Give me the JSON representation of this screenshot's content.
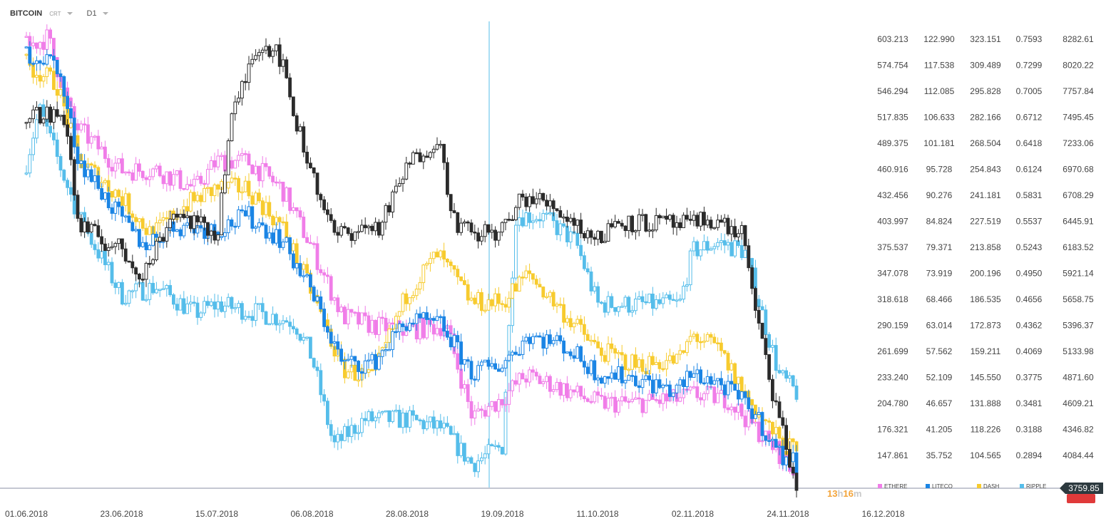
{
  "header": {
    "symbol": "BITCOIN",
    "chart_type": "CRT",
    "timeframe": "D1"
  },
  "timer": {
    "hours": "13",
    "h": "h",
    "minutes": "16",
    "m": "m"
  },
  "current_price_label": "3759.85",
  "colors": {
    "bitcoin": "#2b2b2b",
    "ethere": "#f07de8",
    "liteco": "#1a84e4",
    "dash": "#f7cb2e",
    "ripple": "#55bdea",
    "alert": "#e03a3a",
    "timer": "#f3a43a"
  },
  "chart_data": {
    "type": "candlestick",
    "x_labels": [
      "01.06.2018",
      "23.06.2018",
      "15.07.2018",
      "06.08.2018",
      "28.08.2018",
      "19.09.2018",
      "11.10.2018",
      "02.11.2018",
      "24.11.2018",
      "16.12.2018"
    ],
    "x_range": [
      "01.06.2018",
      "26.11.2018"
    ],
    "y_columns": [
      {
        "series": "ETHERE",
        "ticks": [
          "603.213",
          "574.754",
          "546.294",
          "517.835",
          "489.375",
          "460.916",
          "432.456",
          "403.997",
          "375.537",
          "347.078",
          "318.618",
          "290.159",
          "261.699",
          "233.240",
          "204.780",
          "176.321",
          "147.861"
        ]
      },
      {
        "series": "LITECO",
        "ticks": [
          "122.990",
          "117.538",
          "112.085",
          "106.633",
          "101.181",
          "95.728",
          "90.276",
          "84.824",
          "79.371",
          "73.919",
          "68.466",
          "63.014",
          "57.562",
          "52.109",
          "46.657",
          "41.205",
          "35.752"
        ]
      },
      {
        "series": "DASH",
        "ticks": [
          "323.151",
          "309.489",
          "295.828",
          "282.166",
          "268.504",
          "254.843",
          "241.181",
          "227.519",
          "213.858",
          "200.196",
          "186.535",
          "172.873",
          "159.211",
          "145.550",
          "131.888",
          "118.226",
          "104.565"
        ]
      },
      {
        "series": "RIPPLE",
        "ticks": [
          "0.7593",
          "0.7299",
          "0.7005",
          "0.6712",
          "0.6418",
          "0.6124",
          "0.5831",
          "0.5537",
          "0.5243",
          "0.4950",
          "0.4656",
          "0.4362",
          "0.4069",
          "0.3775",
          "0.3481",
          "0.3188",
          "0.2894"
        ]
      },
      {
        "series": "BITCOIN",
        "ticks": [
          "8282.61",
          "8020.22",
          "7757.84",
          "7495.45",
          "7233.06",
          "6970.68",
          "6708.29",
          "6445.91",
          "6183.52",
          "5921.14",
          "5658.75",
          "5396.37",
          "5133.98",
          "4871.60",
          "4609.21",
          "4346.82",
          "4084.44"
        ]
      }
    ],
    "series": [
      {
        "name": "BITCOIN",
        "label": "",
        "points": [
          {
            "d": "01.06.2018",
            "v": 7530
          },
          {
            "d": "10.06.2018",
            "v": 7500
          },
          {
            "d": "13.06.2018",
            "v": 6400
          },
          {
            "d": "23.06.2018",
            "v": 6150
          },
          {
            "d": "28.06.2018",
            "v": 5900
          },
          {
            "d": "05.07.2018",
            "v": 6550
          },
          {
            "d": "15.07.2018",
            "v": 6300
          },
          {
            "d": "18.07.2018",
            "v": 7400
          },
          {
            "d": "24.07.2018",
            "v": 8220
          },
          {
            "d": "29.07.2018",
            "v": 8200
          },
          {
            "d": "03.08.2018",
            "v": 7350
          },
          {
            "d": "06.08.2018",
            "v": 6950
          },
          {
            "d": "11.08.2018",
            "v": 6300
          },
          {
            "d": "15.08.2018",
            "v": 6350
          },
          {
            "d": "22.08.2018",
            "v": 6400
          },
          {
            "d": "28.08.2018",
            "v": 7000
          },
          {
            "d": "04.09.2018",
            "v": 7300
          },
          {
            "d": "08.09.2018",
            "v": 6450
          },
          {
            "d": "12.09.2018",
            "v": 6300
          },
          {
            "d": "19.09.2018",
            "v": 6350
          },
          {
            "d": "24.09.2018",
            "v": 6700
          },
          {
            "d": "01.10.2018",
            "v": 6600
          },
          {
            "d": "11.10.2018",
            "v": 6250
          },
          {
            "d": "15.10.2018",
            "v": 6450
          },
          {
            "d": "25.10.2018",
            "v": 6420
          },
          {
            "d": "02.11.2018",
            "v": 6400
          },
          {
            "d": "06.11.2018",
            "v": 6480
          },
          {
            "d": "14.11.2018",
            "v": 6300
          },
          {
            "d": "16.11.2018",
            "v": 5600
          },
          {
            "d": "20.11.2018",
            "v": 4800
          },
          {
            "d": "24.11.2018",
            "v": 4100
          },
          {
            "d": "26.11.2018",
            "v": 3760
          }
        ]
      },
      {
        "name": "ETHERE",
        "label": "ETHERE",
        "points": [
          {
            "d": "01.06.2018",
            "v": 595
          },
          {
            "d": "06.06.2018",
            "v": 605
          },
          {
            "d": "12.06.2018",
            "v": 510
          },
          {
            "d": "23.06.2018",
            "v": 460
          },
          {
            "d": "01.07.2018",
            "v": 460
          },
          {
            "d": "10.07.2018",
            "v": 440
          },
          {
            "d": "15.07.2018",
            "v": 470
          },
          {
            "d": "22.07.2018",
            "v": 470
          },
          {
            "d": "30.07.2018",
            "v": 440
          },
          {
            "d": "06.08.2018",
            "v": 375
          },
          {
            "d": "13.08.2018",
            "v": 300
          },
          {
            "d": "20.08.2018",
            "v": 290
          },
          {
            "d": "28.08.2018",
            "v": 285
          },
          {
            "d": "06.09.2018",
            "v": 290
          },
          {
            "d": "12.09.2018",
            "v": 190
          },
          {
            "d": "19.09.2018",
            "v": 210
          },
          {
            "d": "24.09.2018",
            "v": 235
          },
          {
            "d": "01.10.2018",
            "v": 225
          },
          {
            "d": "11.10.2018",
            "v": 205
          },
          {
            "d": "20.10.2018",
            "v": 205
          },
          {
            "d": "30.10.2018",
            "v": 210
          },
          {
            "d": "02.11.2018",
            "v": 215
          },
          {
            "d": "10.11.2018",
            "v": 210
          },
          {
            "d": "16.11.2018",
            "v": 180
          },
          {
            "d": "22.11.2018",
            "v": 150
          },
          {
            "d": "26.11.2018",
            "v": 125
          }
        ]
      },
      {
        "name": "LITECO",
        "label": "LITECO",
        "points": [
          {
            "d": "01.06.2018",
            "v": 120
          },
          {
            "d": "08.06.2018",
            "v": 118
          },
          {
            "d": "13.06.2018",
            "v": 98
          },
          {
            "d": "23.06.2018",
            "v": 85
          },
          {
            "d": "28.06.2018",
            "v": 80
          },
          {
            "d": "06.07.2018",
            "v": 84
          },
          {
            "d": "15.07.2018",
            "v": 83
          },
          {
            "d": "22.07.2018",
            "v": 86
          },
          {
            "d": "30.07.2018",
            "v": 81
          },
          {
            "d": "06.08.2018",
            "v": 70
          },
          {
            "d": "13.08.2018",
            "v": 55
          },
          {
            "d": "20.08.2018",
            "v": 55
          },
          {
            "d": "28.08.2018",
            "v": 64
          },
          {
            "d": "05.09.2018",
            "v": 63
          },
          {
            "d": "12.09.2018",
            "v": 53
          },
          {
            "d": "19.09.2018",
            "v": 55
          },
          {
            "d": "25.09.2018",
            "v": 61
          },
          {
            "d": "03.10.2018",
            "v": 59
          },
          {
            "d": "11.10.2018",
            "v": 53
          },
          {
            "d": "20.10.2018",
            "v": 52
          },
          {
            "d": "29.10.2018",
            "v": 49
          },
          {
            "d": "02.11.2018",
            "v": 53
          },
          {
            "d": "08.11.2018",
            "v": 51
          },
          {
            "d": "16.11.2018",
            "v": 45
          },
          {
            "d": "22.11.2018",
            "v": 36
          },
          {
            "d": "26.11.2018",
            "v": 34
          }
        ]
      },
      {
        "name": "DASH",
        "label": "DASH",
        "points": [
          {
            "d": "01.06.2018",
            "v": 310
          },
          {
            "d": "08.06.2018",
            "v": 300
          },
          {
            "d": "13.06.2018",
            "v": 260
          },
          {
            "d": "23.06.2018",
            "v": 240
          },
          {
            "d": "30.06.2018",
            "v": 220
          },
          {
            "d": "07.07.2018",
            "v": 235
          },
          {
            "d": "15.07.2018",
            "v": 245
          },
          {
            "d": "22.07.2018",
            "v": 245
          },
          {
            "d": "30.07.2018",
            "v": 225
          },
          {
            "d": "06.08.2018",
            "v": 190
          },
          {
            "d": "13.08.2018",
            "v": 150
          },
          {
            "d": "20.08.2018",
            "v": 145
          },
          {
            "d": "28.08.2018",
            "v": 190
          },
          {
            "d": "04.09.2018",
            "v": 210
          },
          {
            "d": "12.09.2018",
            "v": 185
          },
          {
            "d": "19.09.2018",
            "v": 185
          },
          {
            "d": "25.09.2018",
            "v": 200
          },
          {
            "d": "03.10.2018",
            "v": 180
          },
          {
            "d": "11.10.2018",
            "v": 160
          },
          {
            "d": "20.10.2018",
            "v": 152
          },
          {
            "d": "30.10.2018",
            "v": 155
          },
          {
            "d": "02.11.2018",
            "v": 168
          },
          {
            "d": "08.11.2018",
            "v": 160
          },
          {
            "d": "16.11.2018",
            "v": 130
          },
          {
            "d": "22.11.2018",
            "v": 112
          },
          {
            "d": "26.11.2018",
            "v": 106
          }
        ]
      },
      {
        "name": "RIPPLE",
        "label": "RIPPLE",
        "points": [
          {
            "d": "01.06.2018",
            "v": 0.62
          },
          {
            "d": "04.06.2018",
            "v": 0.68
          },
          {
            "d": "13.06.2018",
            "v": 0.56
          },
          {
            "d": "23.06.2018",
            "v": 0.47
          },
          {
            "d": "01.07.2018",
            "v": 0.48
          },
          {
            "d": "10.07.2018",
            "v": 0.45
          },
          {
            "d": "15.07.2018",
            "v": 0.46
          },
          {
            "d": "25.07.2018",
            "v": 0.45
          },
          {
            "d": "02.08.2018",
            "v": 0.44
          },
          {
            "d": "06.08.2018",
            "v": 0.4
          },
          {
            "d": "11.08.2018",
            "v": 0.3
          },
          {
            "d": "18.08.2018",
            "v": 0.33
          },
          {
            "d": "28.08.2018",
            "v": 0.33
          },
          {
            "d": "05.09.2018",
            "v": 0.32
          },
          {
            "d": "12.09.2018",
            "v": 0.28
          },
          {
            "d": "19.09.2018",
            "v": 0.3
          },
          {
            "d": "22.09.2018",
            "v": 0.56
          },
          {
            "d": "28.09.2018",
            "v": 0.56
          },
          {
            "d": "06.10.2018",
            "v": 0.53
          },
          {
            "d": "11.10.2018",
            "v": 0.46
          },
          {
            "d": "20.10.2018",
            "v": 0.46
          },
          {
            "d": "30.10.2018",
            "v": 0.46
          },
          {
            "d": "02.11.2018",
            "v": 0.52
          },
          {
            "d": "08.11.2018",
            "v": 0.53
          },
          {
            "d": "14.11.2018",
            "v": 0.52
          },
          {
            "d": "18.11.2018",
            "v": 0.45
          },
          {
            "d": "22.11.2018",
            "v": 0.38
          },
          {
            "d": "26.11.2018",
            "v": 0.36
          }
        ]
      }
    ],
    "grid": false,
    "legend_position": "bottom-right"
  }
}
